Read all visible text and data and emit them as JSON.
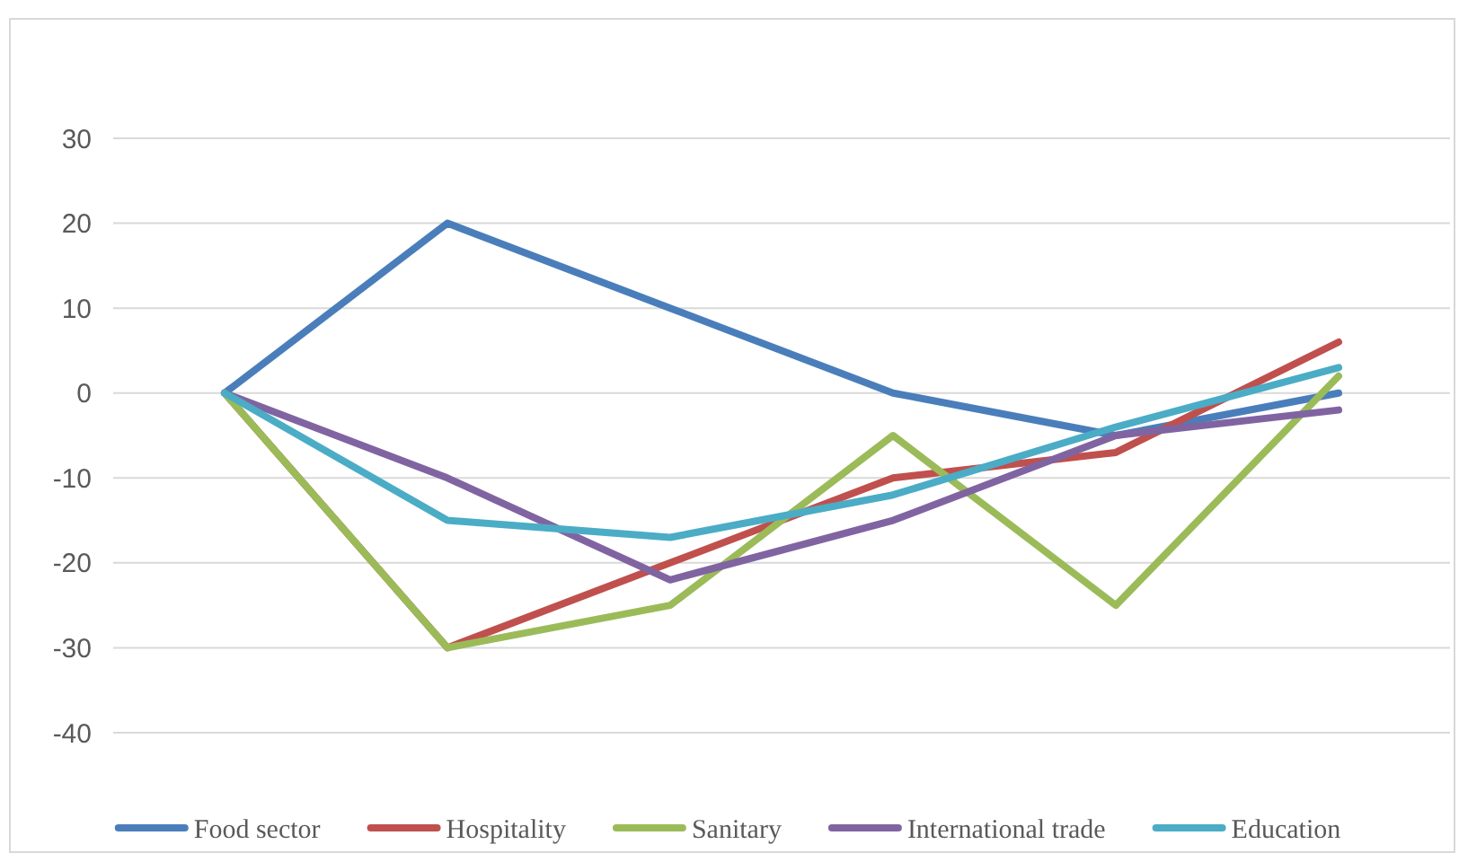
{
  "chart_data": {
    "type": "line",
    "categories": [
      null,
      null,
      null,
      null,
      null,
      null
    ],
    "series": [
      {
        "name": "Food sector",
        "color": "#4a7ebb",
        "values": [
          0,
          20,
          10,
          0,
          -5,
          0
        ]
      },
      {
        "name": "Hospitality",
        "color": "#c0504d",
        "values": [
          0,
          -30,
          -20,
          -10,
          -7,
          6
        ]
      },
      {
        "name": "Sanitary",
        "color": "#9bbb59",
        "values": [
          0,
          -30,
          -25,
          -5,
          -25,
          2
        ]
      },
      {
        "name": "International trade",
        "color": "#8064a2",
        "values": [
          0,
          -10,
          -22,
          -15,
          -5,
          -2
        ]
      },
      {
        "name": "Education",
        "color": "#4bacc6",
        "values": [
          0,
          -15,
          -17,
          -12,
          -4,
          3
        ]
      }
    ],
    "ylim": [
      -40,
      30
    ],
    "yticks": [
      -40,
      -30,
      -20,
      -10,
      0,
      10,
      20,
      30
    ],
    "grid": "y",
    "legend": "bottom",
    "marker": "none",
    "line_style": "solid"
  }
}
